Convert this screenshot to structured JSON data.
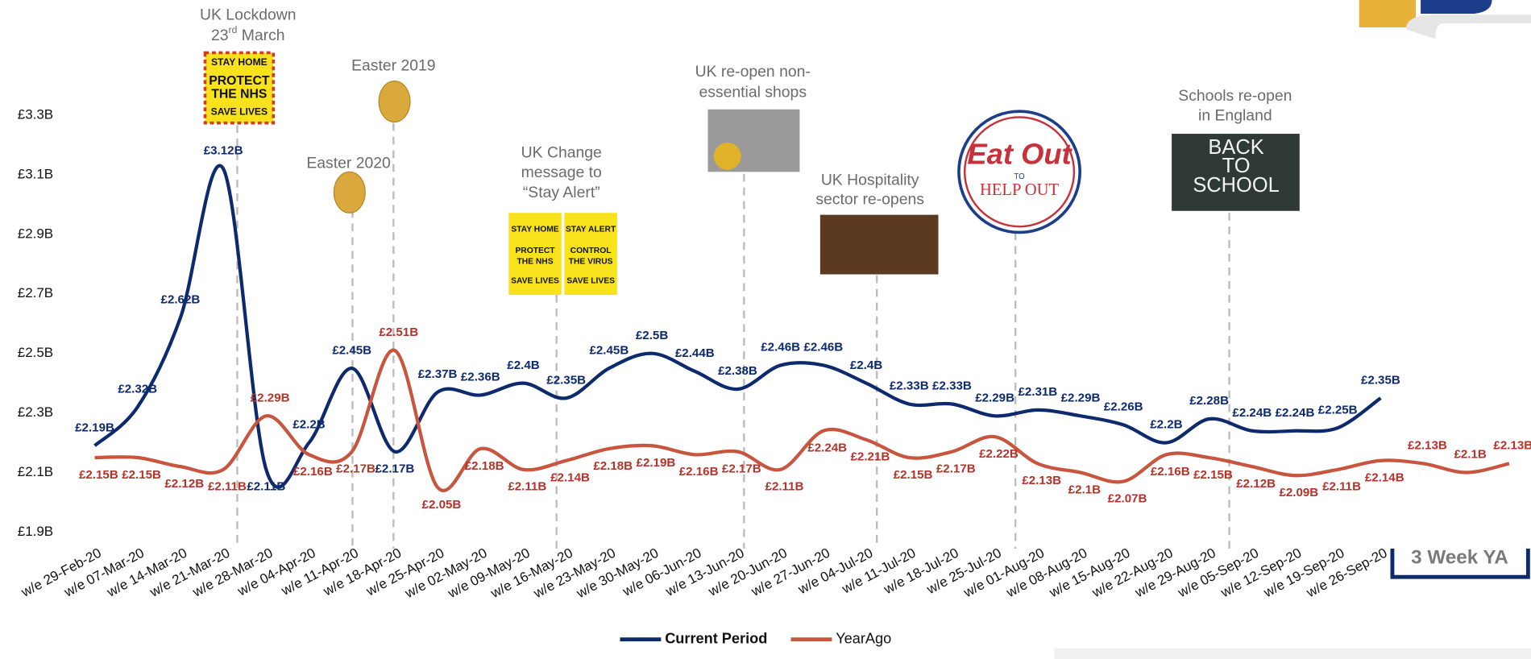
{
  "chart_data": {
    "type": "line",
    "categories": [
      "w/e 29-Feb-20",
      "w/e 07-Mar-20",
      "w/e 14-Mar-20",
      "w/e 21-Mar-20",
      "w/e 28-Mar-20",
      "w/e 04-Apr-20",
      "w/e 11-Apr-20",
      "w/e 18-Apr-20",
      "w/e 25-Apr-20",
      "w/e 02-May-20",
      "w/e 09-May-20",
      "w/e 16-May-20",
      "w/e 23-May-20",
      "w/e 30-May-20",
      "w/e 06-Jun-20",
      "w/e 13-Jun-20",
      "w/e 20-Jun-20",
      "w/e 27-Jun-20",
      "w/e 04-Jul-20",
      "w/e 11-Jul-20",
      "w/e 18-Jul-20",
      "w/e 25-Jul-20",
      "w/e 01-Aug-20",
      "w/e 08-Aug-20",
      "w/e 15-Aug-20",
      "w/e 22-Aug-20",
      "w/e 29-Aug-20",
      "w/e 05-Sep-20",
      "w/e 12-Sep-20",
      "w/e 19-Sep-20",
      "w/e 26-Sep-20",
      null,
      null,
      null
    ],
    "series": [
      {
        "name": "Current Period",
        "color": "#0d2a6e",
        "values": [
          2.19,
          2.32,
          2.62,
          3.12,
          2.11,
          2.2,
          2.45,
          2.17,
          2.37,
          2.36,
          2.4,
          2.35,
          2.45,
          2.5,
          2.44,
          2.38,
          2.46,
          2.46,
          2.4,
          2.33,
          2.33,
          2.29,
          2.31,
          2.29,
          2.26,
          2.2,
          2.28,
          2.24,
          2.24,
          2.25,
          2.35,
          null,
          null,
          null
        ],
        "value_labels": [
          "£2.19B",
          "£2.32B",
          "£2.62B",
          "£3.12B",
          "£2.11B",
          "£2.2B",
          "£2.45B",
          "£2.17B",
          "£2.37B",
          "£2.36B",
          "£2.4B",
          "£2.35B",
          "£2.45B",
          "£2.5B",
          "£2.44B",
          "£2.38B",
          "£2.46B",
          "£2.46B",
          "£2.4B",
          "£2.33B",
          "£2.33B",
          "£2.29B",
          "£2.31B",
          "£2.29B",
          "£2.26B",
          "£2.2B",
          "£2.28B",
          "£2.24B",
          "£2.24B",
          "£2.25B",
          "£2.35B",
          null,
          null,
          null
        ]
      },
      {
        "name": "YearAgo",
        "color": "#c8553d",
        "values": [
          2.15,
          2.15,
          2.12,
          2.11,
          2.29,
          2.16,
          2.17,
          2.51,
          2.05,
          2.18,
          2.11,
          2.14,
          2.18,
          2.19,
          2.16,
          2.17,
          2.11,
          2.24,
          2.21,
          2.15,
          2.17,
          2.22,
          2.13,
          2.1,
          2.07,
          2.16,
          2.15,
          2.12,
          2.09,
          2.11,
          2.14,
          2.13,
          2.1,
          2.13
        ],
        "value_labels": [
          "£2.15B",
          "£2.15B",
          "£2.12B",
          "£2.11B",
          "£2.29B",
          "£2.16B",
          "£2.17B",
          "£2.51B",
          "£2.05B",
          "£2.18B",
          "£2.11B",
          "£2.14B",
          "£2.18B",
          "£2.19B",
          "£2.16B",
          "£2.17B",
          "£2.11B",
          "£2.24B",
          "£2.21B",
          "£2.15B",
          "£2.17B",
          "£2.22B",
          "£2.13B",
          "£2.1B",
          "£2.07B",
          "£2.16B",
          "£2.15B",
          "£2.12B",
          "£2.09B",
          "£2.11B",
          "£2.14B",
          "£2.13B",
          "£2.1B",
          "£2.13B"
        ]
      }
    ],
    "ylim": [
      1.9,
      3.3
    ],
    "yticks": [
      {
        "value": 1.9,
        "label": "£1.9B"
      },
      {
        "value": 2.1,
        "label": "£2.1B"
      },
      {
        "value": 2.3,
        "label": "£2.3B"
      },
      {
        "value": 2.5,
        "label": "£2.5B"
      },
      {
        "value": 2.7,
        "label": "£2.7B"
      },
      {
        "value": 2.9,
        "label": "£2.9B"
      },
      {
        "value": 3.1,
        "label": "£3.1B"
      },
      {
        "value": 3.3,
        "label": "£3.3B"
      }
    ],
    "grid": false,
    "legend": "bottom",
    "annotations": {
      "lockdown": [
        "UK Lockdown",
        "23",
        "rd",
        " March"
      ],
      "lockdown_poster": [
        "STAY HOME",
        "PROTECT",
        "THE NHS",
        "SAVE LIVES"
      ],
      "easter_2019": "Easter 2019",
      "easter_2020": "Easter 2020",
      "stay_alert": [
        "UK Change",
        "message to",
        "“Stay Alert”"
      ],
      "stay_alert_poster": [
        "STAY HOME",
        "PROTECT",
        "THE NHS",
        "SAVE LIVES",
        "STAY ALERT",
        "CONTROL",
        "THE VIRUS",
        "SAVE LIVES"
      ],
      "shops": [
        "UK re-open non-",
        "essential shops"
      ],
      "hospitality": [
        "UK Hospitality",
        "sector re-opens"
      ],
      "eat_out": [
        "Eat Out",
        "TO",
        "HELP OUT"
      ],
      "schools": [
        "Schools re-open",
        "in England"
      ],
      "schools_image": [
        "BACK",
        "TO",
        "SCHOOL"
      ],
      "ya_note": "3 Week YA"
    }
  }
}
